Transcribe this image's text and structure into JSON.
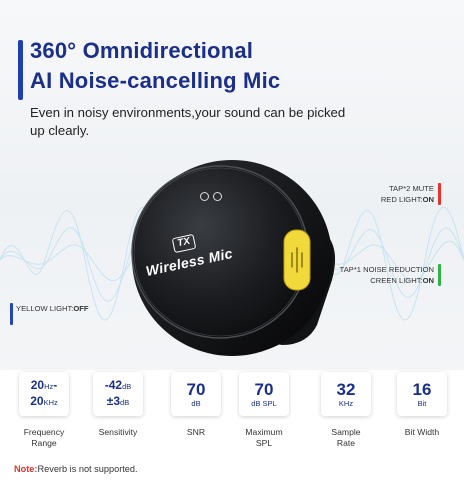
{
  "header": {
    "title_line1": "360° Omnidirectional",
    "title_line2": "AI Noise-cancelling Mic",
    "subtitle": "Even in noisy environments,your sound can be picked up clearly."
  },
  "device": {
    "badge": "TX",
    "label": "Wireless Mic"
  },
  "callouts": {
    "red": {
      "line1": "TAP*2 MUTE",
      "prefix": "RED LIGHT:",
      "state": "ON"
    },
    "green": {
      "line1": "TAP*1 NOISE REDUCTION",
      "prefix": "CREEN LIGHT:",
      "state": "ON"
    },
    "yellow": {
      "prefix": "YELLOW LIGHT:",
      "state": "OFF"
    }
  },
  "specs": [
    {
      "label_line1": "Frequency",
      "label_line2": "Range",
      "top": "20",
      "top_unit": "Hz",
      "top_suffix": "-",
      "bottom": "20",
      "bottom_unit": "KHz"
    },
    {
      "label_line1": "Sensitivity",
      "label_line2": "",
      "top": "-42",
      "top_unit": "dB",
      "bottom": "±3",
      "bottom_unit": "dB"
    },
    {
      "label_line1": "SNR",
      "label_line2": "",
      "value": "70",
      "unit": "dB"
    },
    {
      "label_line1": "Maximum",
      "label_line2": "SPL",
      "value": "70",
      "unit": "dB SPL"
    },
    {
      "label_line1": "Sample",
      "label_line2": "Rate",
      "value": "32",
      "unit": "KHz"
    },
    {
      "label_line1": "Bit Width",
      "label_line2": "",
      "value": "16",
      "unit": "Bit"
    }
  ],
  "note": {
    "key": "Note:",
    "text": "Reverb is not supported."
  },
  "colors": {
    "brand_blue": "#1b2f8a",
    "red_light": "#e3342f",
    "green_light": "#2fb344",
    "yellow_button": "#f2d93b"
  }
}
